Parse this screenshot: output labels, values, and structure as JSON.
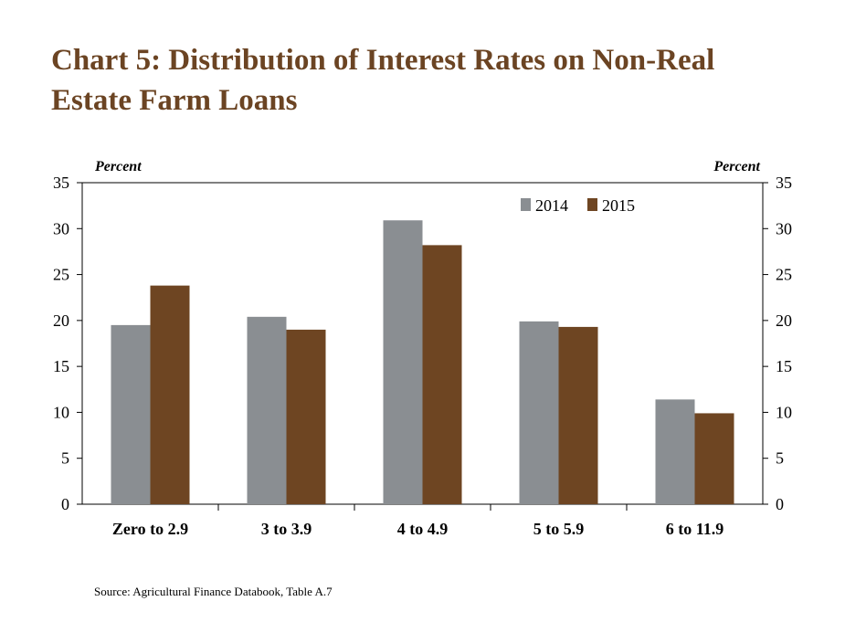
{
  "chart_data": {
    "type": "bar",
    "title": "Chart 5: Distribution of Interest Rates on Non-Real Estate Farm Loans",
    "categories": [
      "Zero to 2.9",
      "3 to 3.9",
      "4 to 4.9",
      "5 to 5.9",
      "6 to 11.9"
    ],
    "series": [
      {
        "name": "2014",
        "color": "#8a8e92",
        "values": [
          19.5,
          20.4,
          30.9,
          19.9,
          11.4
        ]
      },
      {
        "name": "2015",
        "color": "#6e4522",
        "values": [
          23.8,
          19.0,
          28.2,
          19.3,
          9.9
        ]
      }
    ],
    "ylabel_left": "Percent",
    "ylabel_right": "Percent",
    "ylim": [
      0,
      35
    ],
    "yticks": [
      "0",
      "5",
      "10",
      "15",
      "20",
      "25",
      "30",
      "35"
    ],
    "legend_position": "top-right",
    "grid": false,
    "source": "Source: Agricultural Finance Databook, Table A.7"
  }
}
